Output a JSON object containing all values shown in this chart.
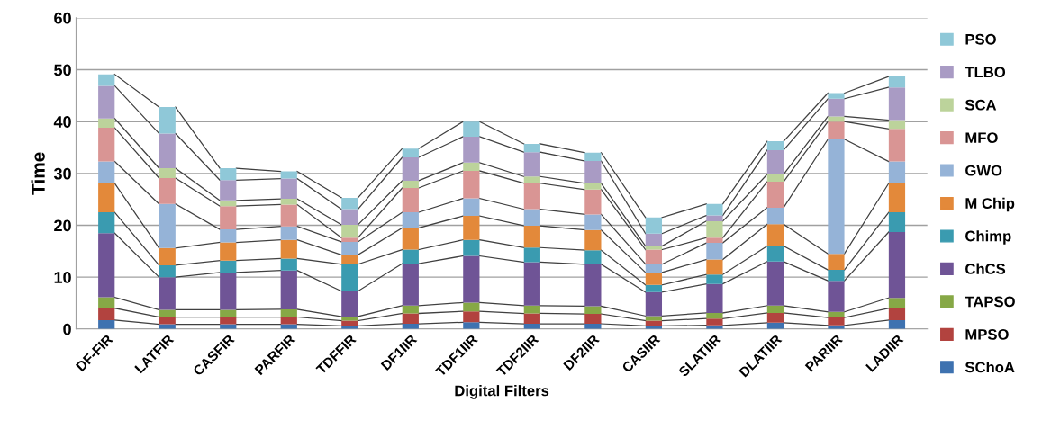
{
  "chart_data": {
    "type": "bar",
    "stacked": true,
    "xlabel": "Digital Filters",
    "ylabel": "Time",
    "categories": [
      "DF-FIR",
      "LATFIR",
      "CASFIR",
      "PARFIR",
      "TDFFIR",
      "DF1IIR",
      "TDF1IIR",
      "TDF2IIR",
      "DF2IIR",
      "CASIIR",
      "SLATIIR",
      "DLATIIR",
      "PARIIR",
      "LADIIR"
    ],
    "series": [
      {
        "name": "SChoA",
        "color": "#3e72b0",
        "values": [
          1.7,
          0.9,
          0.9,
          0.9,
          0.6,
          1.0,
          1.3,
          1.0,
          1.0,
          0.6,
          0.7,
          1.2,
          0.7,
          1.7
        ]
      },
      {
        "name": "MPSO",
        "color": "#b2433f",
        "values": [
          2.3,
          1.4,
          1.4,
          1.4,
          1.0,
          2.0,
          2.1,
          2.0,
          1.9,
          1.0,
          1.3,
          1.9,
          1.5,
          2.3
        ]
      },
      {
        "name": "TAPSO",
        "color": "#86a846",
        "values": [
          2.1,
          1.4,
          1.4,
          1.5,
          0.8,
          1.5,
          1.7,
          1.5,
          1.5,
          0.9,
          1.1,
          1.4,
          1.1,
          2.0
        ]
      },
      {
        "name": "ChCS",
        "color": "#6f5496",
        "values": [
          12.4,
          6.3,
          7.2,
          7.5,
          4.9,
          8.1,
          9.0,
          8.4,
          8.1,
          4.6,
          5.6,
          8.5,
          6.0,
          12.7
        ]
      },
      {
        "name": "Chimp",
        "color": "#3a9bb0",
        "values": [
          4.0,
          2.3,
          2.3,
          2.3,
          5.2,
          2.7,
          3.1,
          2.8,
          2.7,
          1.4,
          1.8,
          3.0,
          2.1,
          3.8
        ]
      },
      {
        "name": "M Chip",
        "color": "#e3893a",
        "values": [
          5.6,
          3.3,
          3.5,
          3.6,
          1.8,
          4.2,
          4.6,
          4.2,
          3.9,
          2.4,
          2.9,
          4.2,
          3.1,
          5.6
        ]
      },
      {
        "name": "GWO",
        "color": "#95b3d7",
        "values": [
          4.2,
          8.5,
          2.5,
          2.6,
          2.5,
          3.0,
          3.4,
          3.2,
          3.0,
          1.6,
          3.2,
          3.2,
          22.1,
          4.2
        ]
      },
      {
        "name": "MFO",
        "color": "#d99594",
        "values": [
          6.5,
          5.0,
          4.5,
          4.2,
          0.8,
          4.7,
          5.3,
          5.0,
          4.8,
          2.8,
          1.0,
          5.0,
          3.4,
          6.3
        ]
      },
      {
        "name": "SCA",
        "color": "#bcd39b",
        "values": [
          1.8,
          1.9,
          1.1,
          1.1,
          2.5,
          1.4,
          1.6,
          1.3,
          1.2,
          0.7,
          3.2,
          1.4,
          1.0,
          1.7
        ]
      },
      {
        "name": "TLBO",
        "color": "#a99bc4",
        "values": [
          6.3,
          6.7,
          3.9,
          3.9,
          3.0,
          4.5,
          5.0,
          4.7,
          4.3,
          2.4,
          1.1,
          4.7,
          3.4,
          6.3
        ]
      },
      {
        "name": "PSO",
        "color": "#8fc8d8",
        "values": [
          2.2,
          5.1,
          2.3,
          1.4,
          2.2,
          1.7,
          2.9,
          1.6,
          1.6,
          3.1,
          2.2,
          1.7,
          1.1,
          2.1
        ]
      }
    ],
    "ylim": [
      0,
      60
    ],
    "yticks": [
      0,
      10,
      20,
      30,
      40,
      50,
      60
    ],
    "grid": "y",
    "legend": "right"
  }
}
